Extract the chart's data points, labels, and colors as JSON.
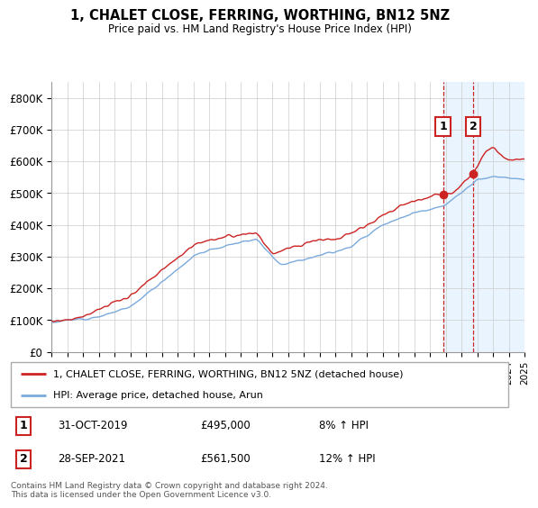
{
  "title": "1, CHALET CLOSE, FERRING, WORTHING, BN12 5NZ",
  "subtitle": "Price paid vs. HM Land Registry's House Price Index (HPI)",
  "legend_line1": "1, CHALET CLOSE, FERRING, WORTHING, BN12 5NZ (detached house)",
  "legend_line2": "HPI: Average price, detached house, Arun",
  "transaction1_date": "31-OCT-2019",
  "transaction1_price": "£495,000",
  "transaction1_hpi": "8% ↑ HPI",
  "transaction2_date": "28-SEP-2021",
  "transaction2_price": "£561,500",
  "transaction2_hpi": "12% ↑ HPI",
  "footer": "Contains HM Land Registry data © Crown copyright and database right 2024.\nThis data is licensed under the Open Government Licence v3.0.",
  "red_color": "#cc2222",
  "blue_color": "#7aaadd",
  "shaded_color": "#ddeeff",
  "grid_color": "#cccccc",
  "bg_color": "#ffffff",
  "ylim_min": 0,
  "ylim_max": 850000,
  "yticks": [
    0,
    100000,
    200000,
    300000,
    400000,
    500000,
    600000,
    700000,
    800000
  ],
  "ytick_labels": [
    "£0",
    "£100K",
    "£200K",
    "£300K",
    "£400K",
    "£500K",
    "£600K",
    "£700K",
    "£800K"
  ],
  "transaction1_x": 2019.83,
  "transaction2_x": 2021.75,
  "transaction1_y": 495000,
  "transaction2_y": 561500,
  "xmin": 1995,
  "xmax": 2025
}
